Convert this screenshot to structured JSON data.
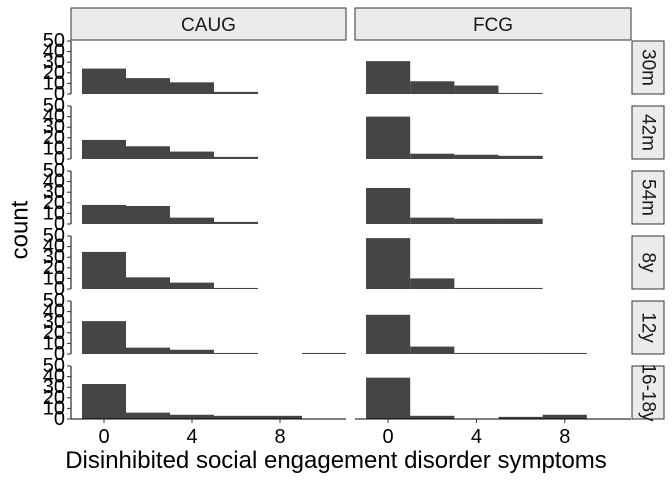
{
  "chart_data": {
    "type": "bar",
    "subtype": "faceted-histogram",
    "xlabel": "Disinhibited social engagement disorder symptoms",
    "ylabel": "count",
    "x_ticks": [
      0,
      4,
      8
    ],
    "y_ticks": [
      0,
      10,
      20,
      30,
      40,
      50
    ],
    "ylim": [
      0,
      50
    ],
    "xlim": [
      -1.5,
      11
    ],
    "bin_edges": [
      -1,
      1,
      3,
      5,
      7,
      9,
      11
    ],
    "bar_color": "#454545",
    "strip_fill": "#ebebeb",
    "columns": [
      "CAUG",
      "FCG"
    ],
    "rows": [
      "30m",
      "42m",
      "54m",
      "8y",
      "12y",
      "16-18y"
    ],
    "counts": {
      "CAUG": {
        "30m": [
          24,
          15,
          11,
          2,
          0,
          0
        ],
        "42m": [
          18,
          12,
          7,
          2,
          0,
          0
        ],
        "54m": [
          18,
          17,
          6,
          2,
          0,
          0
        ],
        "8y": [
          35,
          11,
          6,
          1,
          0,
          0
        ],
        "12y": [
          31,
          6,
          4,
          1,
          0,
          1
        ],
        "16-18y": [
          33,
          6,
          4,
          3,
          3,
          0
        ]
      },
      "FCG": {
        "30m": [
          31,
          12,
          8,
          1,
          0,
          0
        ],
        "42m": [
          40,
          5,
          4,
          3,
          0,
          0
        ],
        "54m": [
          34,
          6,
          5,
          5,
          0,
          0
        ],
        "8y": [
          48,
          10,
          1,
          1,
          0,
          0
        ],
        "12y": [
          37,
          7,
          1,
          1,
          1,
          0
        ],
        "16-18y": [
          39,
          3,
          0,
          2,
          4,
          0
        ]
      }
    }
  }
}
